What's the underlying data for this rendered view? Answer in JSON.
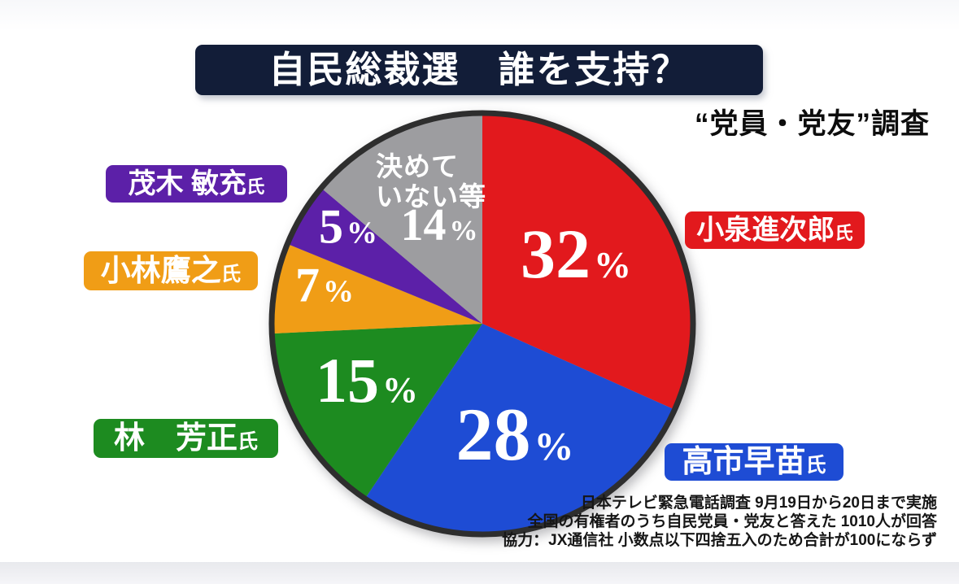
{
  "header": {
    "title": "自民総裁選　誰を支持？",
    "subtitle": "“党員・党友”調査",
    "banner_color": "#121d38"
  },
  "chart_data": {
    "type": "pie",
    "title": "自民総裁選　誰を支持？",
    "subtitle": "“党員・党友”調査",
    "unit": "%",
    "start_angle_deg": 0,
    "direction": "clockwise",
    "outline_color": "#2e2e2e",
    "value_label_color": "#ffffff",
    "slices": [
      {
        "name": "小泉進次郎",
        "suffix": "氏",
        "value": 32,
        "color": "#e2191d"
      },
      {
        "name": "高市早苗",
        "suffix": "氏",
        "value": 28,
        "color": "#1e4cd4"
      },
      {
        "name": "林　芳正",
        "suffix": "氏",
        "value": 15,
        "color": "#1d8b20"
      },
      {
        "name": "小林鷹之",
        "suffix": "氏",
        "value": 7,
        "color": "#f09d16"
      },
      {
        "name": "茂木 敏充",
        "suffix": "氏",
        "value": 5,
        "color": "#5c20a8"
      },
      {
        "name": "決めていない等",
        "suffix": "",
        "value": 14,
        "color": "#9d9da0",
        "name_lines": [
          "決めて",
          "いない等"
        ]
      }
    ],
    "source_lines": [
      "日本テレビ緊急電話調査 9月19日から20日まで実施",
      "全国の有権者のうち自民党員・党友と答えた 1010人が回答",
      "協力：JX通信社 小数点以下四捨五入のため合計が100にならず"
    ]
  }
}
